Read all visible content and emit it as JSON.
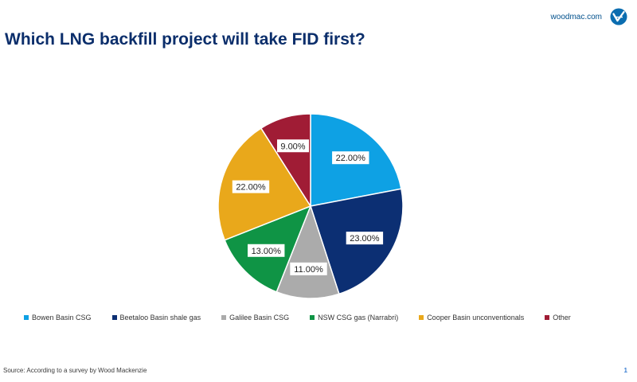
{
  "brand": {
    "site": "woodmac.com",
    "logo_icon": "woodmac-logo-icon"
  },
  "title": "Which LNG backfill project will take FID first?",
  "chart_data": {
    "type": "pie",
    "title": "Which LNG backfill project will take FID first?",
    "slices": [
      {
        "name": "Bowen Basin CSG",
        "value": 22.0,
        "label": "22.00%",
        "color": "#0ea1e4"
      },
      {
        "name": "Beetaloo Basin shale gas",
        "value": 23.0,
        "label": "23.00%",
        "color": "#0c2f73"
      },
      {
        "name": "Galilee Basin CSG",
        "value": 11.0,
        "label": "11.00%",
        "color": "#ababab"
      },
      {
        "name": "NSW CSG gas (Narrabri)",
        "value": 13.0,
        "label": "13.00%",
        "color": "#0f9445"
      },
      {
        "name": "Cooper Basin unconventionals",
        "value": 22.0,
        "label": "22.00%",
        "color": "#e9a81b"
      },
      {
        "name": "Other",
        "value": 9.0,
        "label": "9.00%",
        "color": "#a01c35"
      }
    ],
    "legend_position": "bottom",
    "start_angle_deg": 0,
    "direction": "clockwise"
  },
  "source": "Source: According to a survey by Wood Mackenzie",
  "page_number": "1"
}
